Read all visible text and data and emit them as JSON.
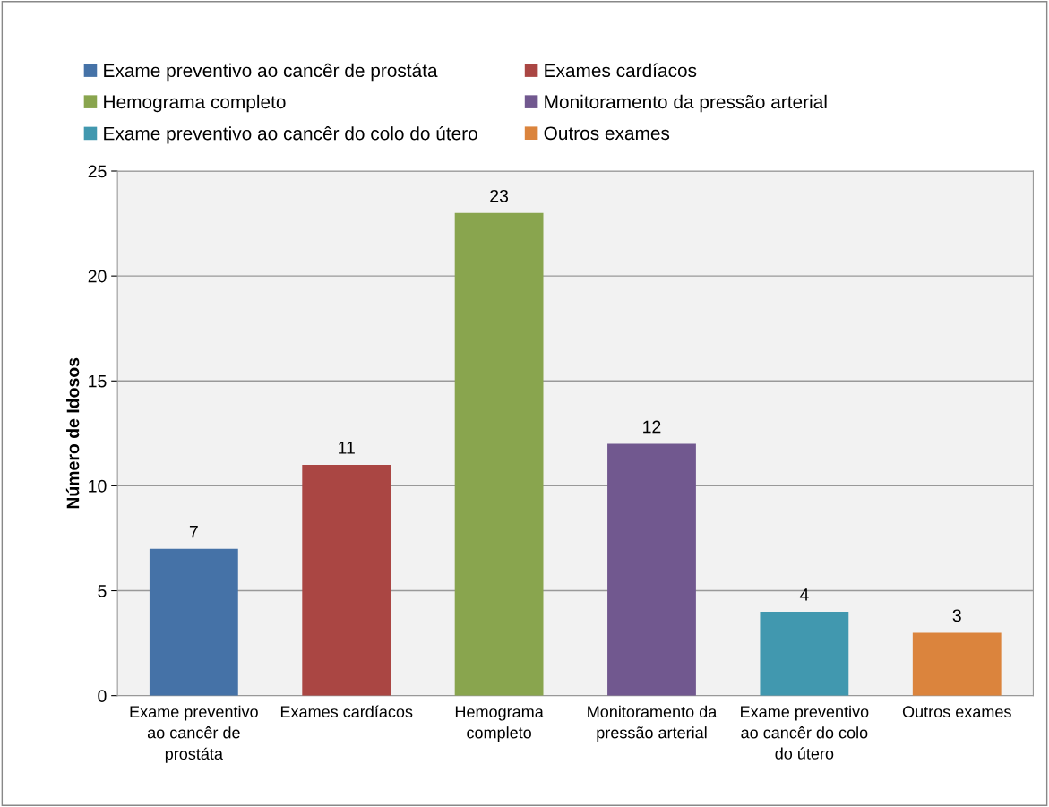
{
  "chart_data": {
    "type": "bar",
    "ylabel": "Número de Idosos",
    "categories": [
      "Exame preventivo\nao cancêr de\nprostáta",
      "Exames cardíacos",
      "Hemograma\ncompleto",
      "Monitoramento da\npressão arterial",
      "Exame preventivo\nao cancêr do colo\ndo útero",
      "Outros exames"
    ],
    "series": [
      {
        "name": "Exame preventivo ao cancêr de prostáta",
        "color": "#4572a7",
        "values": [
          7,
          null,
          null,
          null,
          null,
          null
        ]
      },
      {
        "name": "Exames cardíacos",
        "color": "#aa4643",
        "values": [
          null,
          11,
          null,
          null,
          null,
          null
        ]
      },
      {
        "name": "Hemograma completo",
        "color": "#89a54e",
        "values": [
          null,
          null,
          23,
          null,
          null,
          null
        ]
      },
      {
        "name": "Monitoramento da pressão arterial",
        "color": "#71588f",
        "values": [
          null,
          null,
          null,
          12,
          null,
          null
        ]
      },
      {
        "name": "Exame preventivo ao cancêr do colo do útero",
        "color": "#4198af",
        "values": [
          null,
          null,
          null,
          null,
          4,
          null
        ]
      },
      {
        "name": "Outros exames",
        "color": "#db843d",
        "values": [
          null,
          null,
          null,
          null,
          null,
          3
        ]
      }
    ],
    "ylim": [
      0,
      25
    ],
    "yticks": [
      0,
      5,
      10,
      15,
      20,
      25
    ],
    "grid": "y",
    "legend": "top",
    "data_labels": true
  }
}
